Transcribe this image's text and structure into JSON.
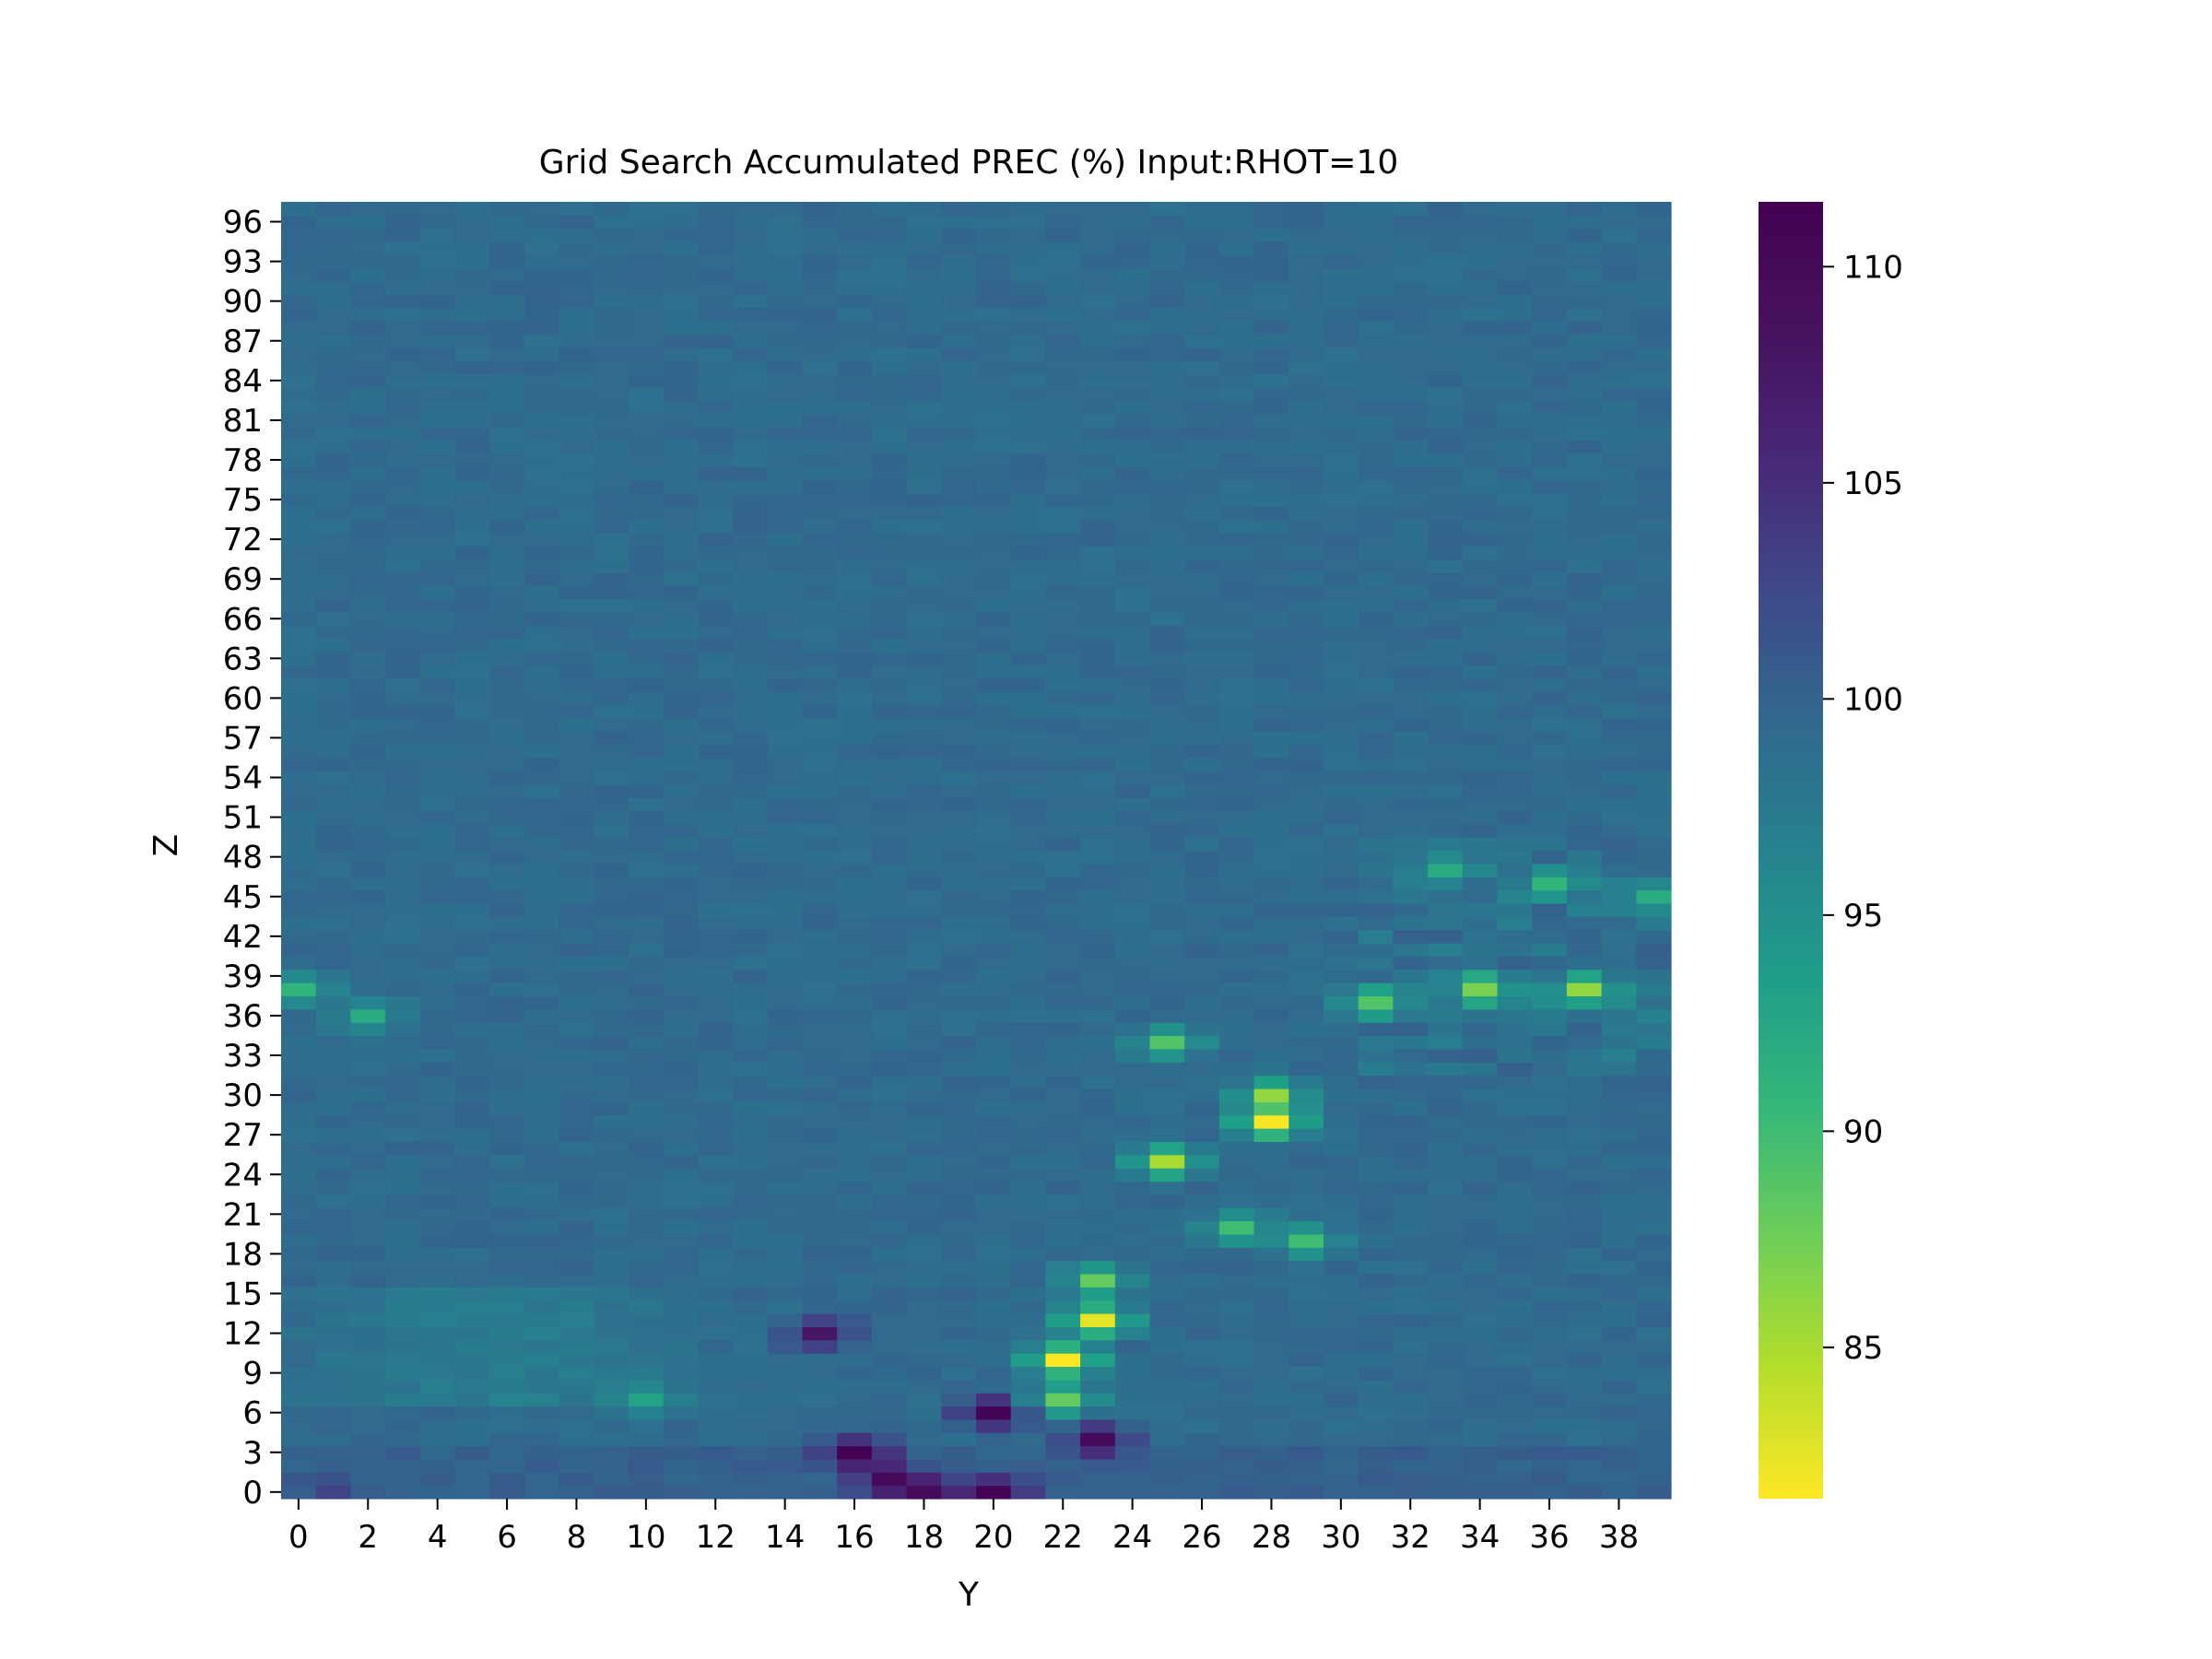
{
  "chart_data": {
    "type": "heatmap",
    "title": "Grid Search Accumulated PREC (%) Input:RHOT=10",
    "xlabel": "Y",
    "ylabel": "Z",
    "x_ticks": [
      "0",
      "2",
      "4",
      "6",
      "8",
      "10",
      "12",
      "14",
      "16",
      "18",
      "20",
      "22",
      "24",
      "26",
      "28",
      "30",
      "32",
      "34",
      "36",
      "38"
    ],
    "y_ticks": [
      "0",
      "3",
      "6",
      "9",
      "12",
      "15",
      "18",
      "21",
      "24",
      "27",
      "30",
      "33",
      "36",
      "39",
      "42",
      "45",
      "48",
      "51",
      "54",
      "57",
      "60",
      "63",
      "66",
      "69",
      "72",
      "75",
      "78",
      "81",
      "84",
      "87",
      "90",
      "93",
      "96"
    ],
    "x_range": [
      0,
      39
    ],
    "y_range": [
      0,
      97
    ],
    "n_cols": 40,
    "n_rows": 98,
    "colormap": "viridis_r",
    "colorbar": {
      "min": 81.5,
      "max": 111.5,
      "ticks": [
        "85",
        "90",
        "95",
        "100",
        "105",
        "110"
      ],
      "tick_values": [
        85,
        90,
        95,
        100,
        105,
        110
      ]
    },
    "background_value": 99.2,
    "features": [
      {
        "y": 1,
        "z": 0,
        "value": 103
      },
      {
        "y": 16,
        "z": 3,
        "value": 111.5
      },
      {
        "y": 17,
        "z": 1,
        "value": 110
      },
      {
        "y": 18,
        "z": 0,
        "value": 110
      },
      {
        "y": 20,
        "z": 0,
        "value": 111
      },
      {
        "y": 20,
        "z": 6,
        "value": 111
      },
      {
        "y": 22,
        "z": 10,
        "value": 81.5
      },
      {
        "y": 22,
        "z": 7,
        "value": 88
      },
      {
        "y": 23,
        "z": 13,
        "value": 82.5
      },
      {
        "y": 23,
        "z": 16,
        "value": 88
      },
      {
        "y": 25,
        "z": 25,
        "value": 85
      },
      {
        "y": 25,
        "z": 34,
        "value": 89
      },
      {
        "y": 28,
        "z": 28,
        "value": 81.5
      },
      {
        "y": 28,
        "z": 30,
        "value": 86
      },
      {
        "y": 31,
        "z": 37,
        "value": 89
      },
      {
        "y": 34,
        "z": 38,
        "value": 87
      },
      {
        "y": 37,
        "z": 38,
        "value": 86
      },
      {
        "y": 33,
        "z": 47,
        "value": 92
      },
      {
        "y": 36,
        "z": 46,
        "value": 91
      },
      {
        "y": 39,
        "z": 45,
        "value": 92
      },
      {
        "y": 0,
        "z": 38,
        "value": 91
      },
      {
        "y": 2,
        "z": 36,
        "value": 92
      },
      {
        "y": 10,
        "z": 7,
        "value": 93
      },
      {
        "y": 15,
        "z": 12,
        "value": 108
      },
      {
        "y": 23,
        "z": 4,
        "value": 110
      },
      {
        "y": 27,
        "z": 20,
        "value": 90
      },
      {
        "y": 29,
        "z": 19,
        "value": 90
      }
    ]
  }
}
